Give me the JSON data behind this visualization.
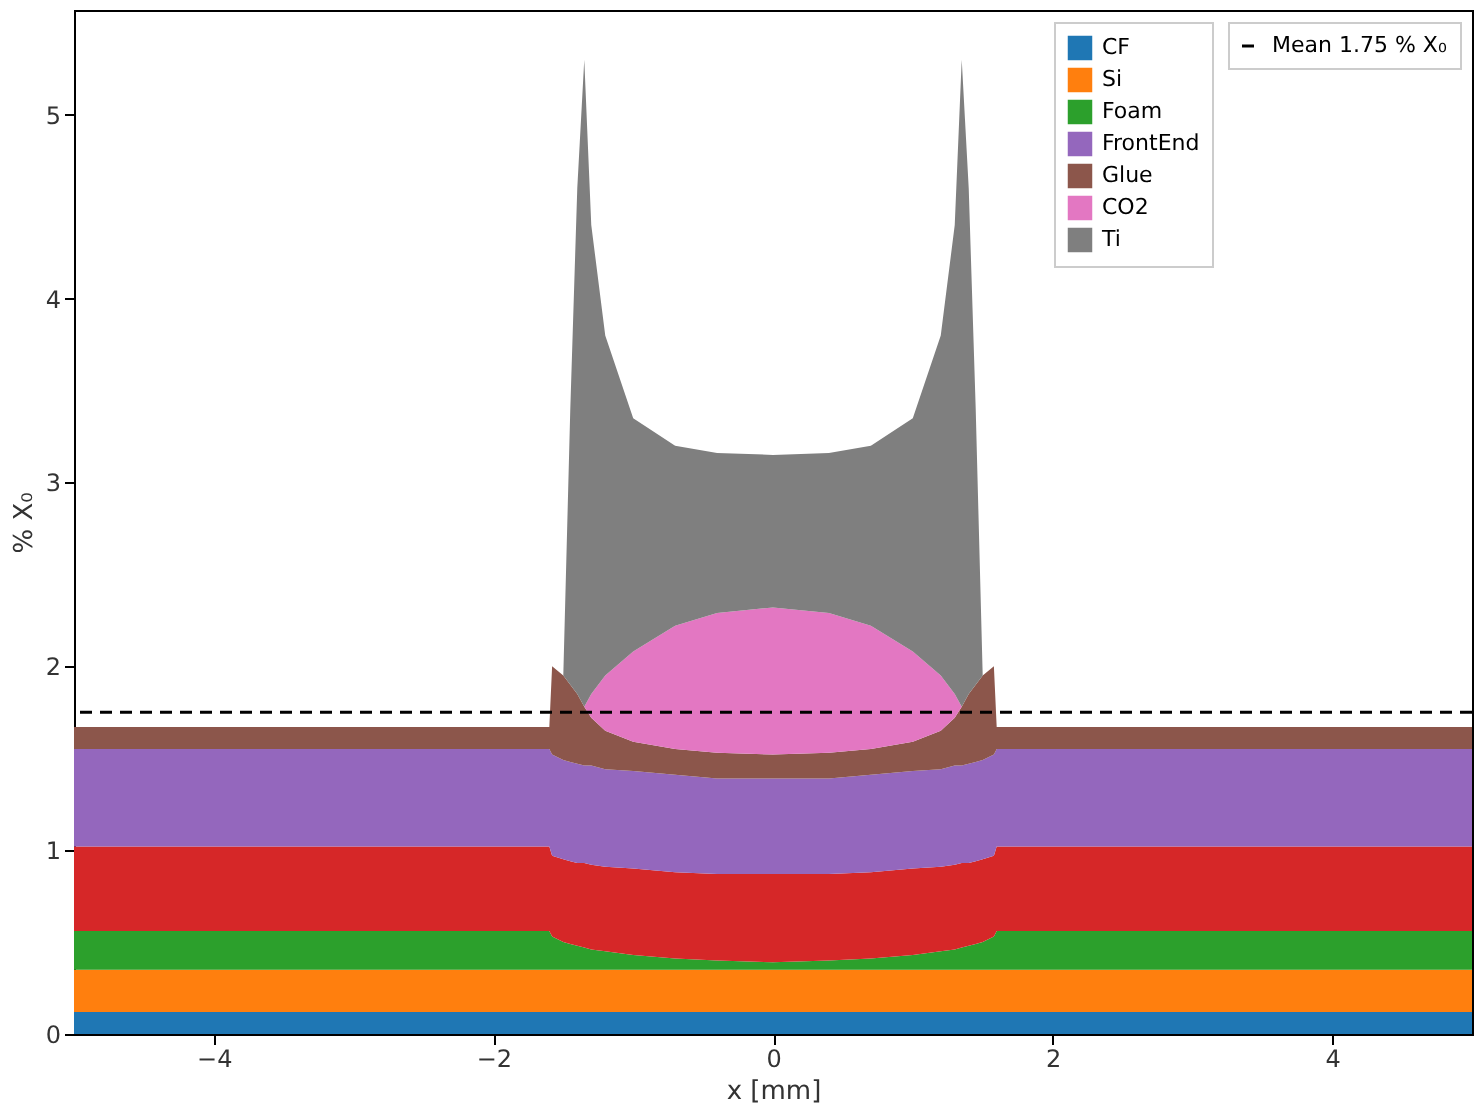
{
  "chart_data": {
    "type": "area",
    "stacked": true,
    "xlabel": "x [mm]",
    "ylabel": "% X₀",
    "x": [
      -5,
      -1.6,
      -1.58,
      -1.5,
      -1.45,
      -1.4,
      -1.35,
      -1.3,
      -1.2,
      -1.0,
      -0.7,
      -0.4,
      0,
      0.4,
      0.7,
      1.0,
      1.2,
      1.3,
      1.35,
      1.4,
      1.45,
      1.5,
      1.58,
      1.6,
      5
    ],
    "series": [
      {
        "name": "CF",
        "color": "#1f77b4",
        "values": [
          0.12,
          0.12,
          0.12,
          0.12,
          0.12,
          0.12,
          0.12,
          0.12,
          0.12,
          0.12,
          0.12,
          0.12,
          0.12,
          0.12,
          0.12,
          0.12,
          0.12,
          0.12,
          0.12,
          0.12,
          0.12,
          0.12,
          0.12,
          0.12,
          0.12
        ]
      },
      {
        "name": "Si",
        "color": "#ff7f0e",
        "values": [
          0.23,
          0.23,
          0.23,
          0.23,
          0.23,
          0.23,
          0.23,
          0.23,
          0.23,
          0.23,
          0.23,
          0.23,
          0.23,
          0.23,
          0.23,
          0.23,
          0.23,
          0.23,
          0.23,
          0.23,
          0.23,
          0.23,
          0.23,
          0.23,
          0.23
        ]
      },
      {
        "name": "Foam",
        "color": "#2ca02c",
        "values": [
          0.21,
          0.21,
          0.18,
          0.15,
          0.14,
          0.13,
          0.12,
          0.11,
          0.1,
          0.08,
          0.06,
          0.05,
          0.04,
          0.05,
          0.06,
          0.08,
          0.1,
          0.11,
          0.12,
          0.13,
          0.14,
          0.15,
          0.18,
          0.21,
          0.21
        ]
      },
      {
        "color": "#d62728",
        "values": [
          0.46,
          0.46,
          0.44,
          0.45,
          0.45,
          0.45,
          0.46,
          0.46,
          0.46,
          0.47,
          0.47,
          0.47,
          0.48,
          0.47,
          0.47,
          0.47,
          0.46,
          0.46,
          0.46,
          0.45,
          0.45,
          0.45,
          0.44,
          0.46,
          0.46
        ]
      },
      {
        "name": "FrontEnd",
        "color": "#9467bd",
        "values": [
          0.53,
          0.53,
          0.55,
          0.54,
          0.54,
          0.54,
          0.53,
          0.54,
          0.53,
          0.53,
          0.53,
          0.52,
          0.52,
          0.52,
          0.53,
          0.53,
          0.53,
          0.54,
          0.53,
          0.54,
          0.54,
          0.54,
          0.55,
          0.53,
          0.53
        ]
      },
      {
        "name": "Glue",
        "color": "#8c564b",
        "values": [
          0.12,
          0.12,
          0.48,
          0.46,
          0.42,
          0.38,
          0.32,
          0.26,
          0.21,
          0.16,
          0.14,
          0.14,
          0.13,
          0.14,
          0.14,
          0.16,
          0.21,
          0.26,
          0.32,
          0.38,
          0.42,
          0.46,
          0.48,
          0.12,
          0.12
        ]
      },
      {
        "name": "CO2",
        "color": "#e377c2",
        "values": [
          0,
          0,
          0,
          0,
          0,
          0,
          0,
          0.13,
          0.3,
          0.49,
          0.67,
          0.76,
          0.8,
          0.76,
          0.67,
          0.49,
          0.3,
          0.13,
          0,
          0,
          0,
          0,
          0,
          0,
          0
        ]
      },
      {
        "name": "Ti",
        "color": "#7f7f7f",
        "values": [
          0,
          0,
          0,
          0,
          1.5,
          2.75,
          3.52,
          2.55,
          1.85,
          1.27,
          0.98,
          0.87,
          0.83,
          0.87,
          0.98,
          1.27,
          1.85,
          2.55,
          3.52,
          2.75,
          1.5,
          0,
          0,
          0,
          0
        ]
      }
    ],
    "ref_lines": [
      {
        "axis": "y",
        "value": 1.75,
        "label": "Mean 1.75 % X₀",
        "color": "#000000",
        "line_style": "dashed"
      }
    ],
    "xlim": [
      -5,
      5
    ],
    "xticks": [
      -4,
      -2,
      0,
      2,
      4
    ],
    "ylim": [
      0,
      5.57
    ],
    "yticks": [
      0,
      1,
      2,
      3,
      4,
      5
    ],
    "legend": "top right",
    "grid": false
  }
}
